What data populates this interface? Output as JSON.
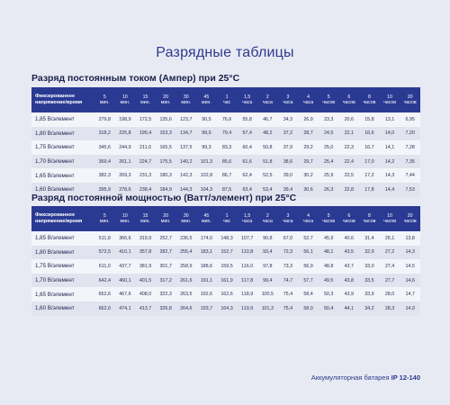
{
  "page_title": "Разрядные таблицы",
  "columns": [
    [
      "5",
      "мин."
    ],
    [
      "10",
      "мин."
    ],
    [
      "15",
      "мин."
    ],
    [
      "20",
      "мин."
    ],
    [
      "30",
      "мин."
    ],
    [
      "45",
      "мин."
    ],
    [
      "1",
      "час"
    ],
    [
      "1,5",
      "часа"
    ],
    [
      "2",
      "часа"
    ],
    [
      "3",
      "часа"
    ],
    [
      "4",
      "часа"
    ],
    [
      "5",
      "часов"
    ],
    [
      "6",
      "часов"
    ],
    [
      "8",
      "часов"
    ],
    [
      "10",
      "часов"
    ],
    [
      "20",
      "часов"
    ]
  ],
  "header_label_line1": "Фиксированное",
  "header_label_line2": "напряжение/время",
  "tables": [
    {
      "title": "Разряд постоянным током (Ампер) при 25°С",
      "rows": [
        {
          "label": "1,85 В/элемент",
          "values": [
            "279,8",
            "198,9",
            "172,5",
            "135,6",
            "123,7",
            "90,5",
            "76,6",
            "55,8",
            "46,7",
            "34,3",
            "26,9",
            "23,3",
            "20,6",
            "15,8",
            "13,1",
            "6,95"
          ]
        },
        {
          "label": "1,80 В/элемент",
          "values": [
            "318,2",
            "225,8",
            "195,4",
            "153,3",
            "134,7",
            "99,9",
            "79,4",
            "57,4",
            "48,2",
            "37,2",
            "28,7",
            "24,5",
            "22,1",
            "16,6",
            "14,0",
            "7,20"
          ]
        },
        {
          "label": "1,75 В/элемент",
          "values": [
            "345,6",
            "244,9",
            "211,6",
            "165,5",
            "137,5",
            "99,3",
            "83,3",
            "60,4",
            "50,8",
            "37,9",
            "29,2",
            "25,0",
            "22,3",
            "16,7",
            "14,1",
            "7,28"
          ]
        },
        {
          "label": "1,70 В/элемент",
          "values": [
            "369,4",
            "261,1",
            "224,7",
            "175,5",
            "140,2",
            "101,3",
            "85,6",
            "61,6",
            "51,8",
            "38,6",
            "29,7",
            "25,4",
            "22,4",
            "17,0",
            "14,2",
            "7,35"
          ]
        },
        {
          "label": "1,65 В/элемент",
          "values": [
            "382,3",
            "269,3",
            "231,3",
            "180,3",
            "142,3",
            "102,8",
            "86,7",
            "62,4",
            "52,5",
            "39,0",
            "30,2",
            "25,9",
            "22,5",
            "17,2",
            "14,3",
            "7,44"
          ]
        },
        {
          "label": "1,60 В/элемент",
          "values": [
            "395,9",
            "278,6",
            "238,4",
            "184,9",
            "144,3",
            "104,3",
            "87,5",
            "63,4",
            "53,4",
            "39,4",
            "30,6",
            "26,3",
            "22,8",
            "17,8",
            "14,4",
            "7,53"
          ]
        }
      ]
    },
    {
      "title": "Разряд постоянной мощностью (Ватт/элемент) при 25°С",
      "rows": [
        {
          "label": "1,85 В/элемент",
          "values": [
            "511,8",
            "366,6",
            "319,9",
            "252,7",
            "236,5",
            "174,0",
            "148,3",
            "107,7",
            "90,8",
            "67,0",
            "52,7",
            "45,9",
            "40,6",
            "31,4",
            "26,1",
            "13,8"
          ]
        },
        {
          "label": "1,80 В/элемент",
          "values": [
            "572,5",
            "410,1",
            "357,8",
            "282,7",
            "255,4",
            "183,1",
            "152,7",
            "110,8",
            "93,4",
            "72,3",
            "56,1",
            "48,1",
            "43,5",
            "32,9",
            "27,2",
            "14,3"
          ]
        },
        {
          "label": "1,75 В/элемент",
          "values": [
            "611,0",
            "437,7",
            "381,9",
            "301,7",
            "258,9",
            "188,6",
            "159,5",
            "116,0",
            "97,8",
            "73,3",
            "56,9",
            "48,8",
            "43,7",
            "33,0",
            "27,4",
            "14,5"
          ]
        },
        {
          "label": "1,70 В/элемент",
          "values": [
            "642,4",
            "460,1",
            "401,5",
            "317,2",
            "261,6",
            "191,1",
            "161,9",
            "117,8",
            "99,4",
            "74,7",
            "57,7",
            "49,5",
            "43,8",
            "33,5",
            "27,7",
            "14,6"
          ]
        },
        {
          "label": "1,65 В/элемент",
          "values": [
            "652,6",
            "467,6",
            "408,0",
            "322,3",
            "263,5",
            "192,6",
            "162,6",
            "118,9",
            "100,5",
            "75,4",
            "58,4",
            "50,3",
            "43,9",
            "33,9",
            "28,0",
            "14,7"
          ]
        },
        {
          "label": "1,60 В/элемент",
          "values": [
            "662,0",
            "474,1",
            "413,7",
            "326,8",
            "264,6",
            "193,7",
            "164,3",
            "119,9",
            "101,3",
            "75,4",
            "58,0",
            "50,4",
            "44,1",
            "34,2",
            "28,3",
            "14,9"
          ]
        }
      ]
    }
  ],
  "footer": {
    "text": "Аккумуляторная батарея ",
    "model": "IP 12-140"
  }
}
